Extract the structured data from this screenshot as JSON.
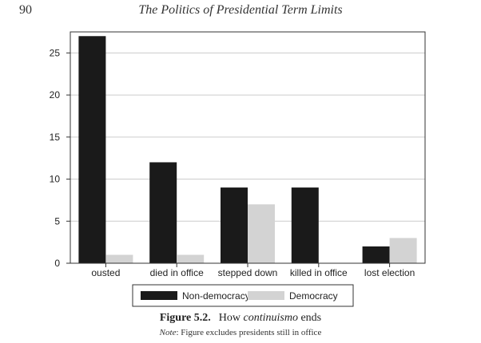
{
  "page": {
    "number": "90",
    "running_head": "The Politics of Presidential Term Limits"
  },
  "caption": {
    "label": "Figure 5.2.",
    "text_before": "How ",
    "text_italic": "continuismo",
    "text_after": " ends"
  },
  "note": {
    "label": "Note",
    "text": ": Figure excludes presidents still in office"
  },
  "colors": {
    "non_democracy": "#1a1a1a",
    "democracy": "#d3d3d3",
    "gridline": "#cccccc",
    "axis": "#333333"
  },
  "chart_data": {
    "type": "bar",
    "title": "",
    "xlabel": "",
    "ylabel": "",
    "categories": [
      "ousted",
      "died in office",
      "stepped down",
      "killed in office",
      "lost election"
    ],
    "series": [
      {
        "name": "Non-democracy",
        "values": [
          27,
          12,
          9,
          9,
          2
        ]
      },
      {
        "name": "Democracy",
        "values": [
          1,
          1,
          7,
          0,
          3
        ]
      }
    ],
    "yticks": [
      0,
      5,
      10,
      15,
      20,
      25
    ],
    "ylim": [
      0,
      27.5
    ],
    "grid": true,
    "legend_position": "bottom"
  }
}
